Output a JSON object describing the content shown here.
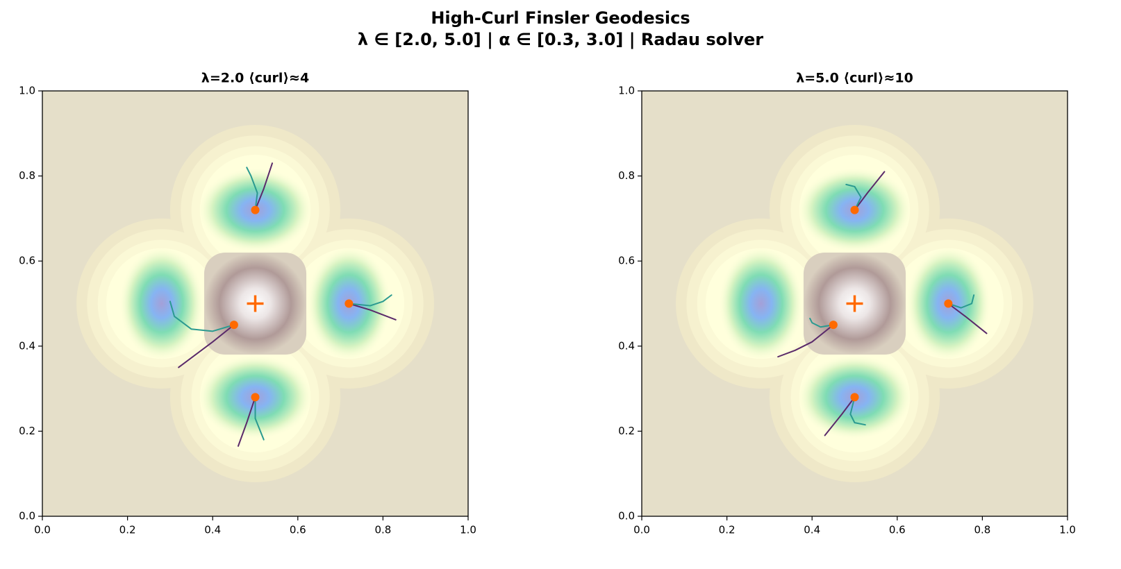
{
  "title": "High-Curl Finsler Geodesics",
  "subtitle": "λ ∈ [2.0, 5.0] | α ∈ [0.3, 3.0] | Radau solver",
  "chart_data": [
    {
      "type": "geodesic",
      "title": "λ=2.0  ⟨curl⟩≈4",
      "xlim": [
        0,
        1
      ],
      "ylim": [
        0,
        1
      ],
      "xticks": [
        {
          "value": 0,
          "label": "0.0"
        },
        {
          "value": 0.2,
          "label": "0.2"
        },
        {
          "value": 0.4,
          "label": "0.4"
        },
        {
          "value": 0.6,
          "label": "0.6"
        },
        {
          "value": 0.8,
          "label": "0.8"
        },
        {
          "value": 1,
          "label": "1.0"
        }
      ],
      "yticks": [
        {
          "value": 0,
          "label": "0.0"
        },
        {
          "value": 0.2,
          "label": "0.2"
        },
        {
          "value": 0.4,
          "label": "0.4"
        },
        {
          "value": 0.6,
          "label": "0.6"
        },
        {
          "value": 0.8,
          "label": "0.8"
        },
        {
          "value": 1,
          "label": "1.0"
        }
      ],
      "wells": {
        "x": [
          0.28,
          0.72,
          0.5,
          0.5
        ],
        "y": [
          0.5,
          0.5,
          0.72,
          0.28
        ]
      },
      "center": {
        "x": 0.5,
        "y": 0.5,
        "color": "#ff6a00"
      },
      "sources": {
        "x": [
          0.45,
          0.72,
          0.5,
          0.5
        ],
        "y": [
          0.45,
          0.5,
          0.72,
          0.28
        ],
        "color": "#ff6a00"
      },
      "series": [
        {
          "color": "#5a2a6a",
          "x": [
            0.45,
            0.4,
            0.36,
            0.32
          ],
          "y": [
            0.45,
            0.41,
            0.38,
            0.35
          ]
        },
        {
          "color": "#2a9a90",
          "x": [
            0.45,
            0.4,
            0.35,
            0.31,
            0.3
          ],
          "y": [
            0.45,
            0.435,
            0.44,
            0.47,
            0.505
          ]
        },
        {
          "color": "#5a2a6a",
          "x": [
            0.72,
            0.77,
            0.83
          ],
          "y": [
            0.5,
            0.485,
            0.462
          ]
        },
        {
          "color": "#2a9a90",
          "x": [
            0.72,
            0.77,
            0.8,
            0.82
          ],
          "y": [
            0.5,
            0.495,
            0.505,
            0.52
          ]
        },
        {
          "color": "#5a2a6a",
          "x": [
            0.5,
            0.52,
            0.54
          ],
          "y": [
            0.72,
            0.77,
            0.83
          ]
        },
        {
          "color": "#2a9a90",
          "x": [
            0.5,
            0.505,
            0.49,
            0.48
          ],
          "y": [
            0.72,
            0.76,
            0.8,
            0.82
          ]
        },
        {
          "color": "#5a2a6a",
          "x": [
            0.5,
            0.48,
            0.46
          ],
          "y": [
            0.28,
            0.22,
            0.165
          ]
        },
        {
          "color": "#2a9a90",
          "x": [
            0.5,
            0.5,
            0.52
          ],
          "y": [
            0.28,
            0.23,
            0.18
          ]
        }
      ]
    },
    {
      "type": "geodesic",
      "title": "λ=5.0  ⟨curl⟩≈10",
      "xlim": [
        0,
        1
      ],
      "ylim": [
        0,
        1
      ],
      "xticks": [
        {
          "value": 0,
          "label": "0.0"
        },
        {
          "value": 0.2,
          "label": "0.2"
        },
        {
          "value": 0.4,
          "label": "0.4"
        },
        {
          "value": 0.6,
          "label": "0.6"
        },
        {
          "value": 0.8,
          "label": "0.8"
        },
        {
          "value": 1,
          "label": "1.0"
        }
      ],
      "yticks": [
        {
          "value": 0,
          "label": "0.0"
        },
        {
          "value": 0.2,
          "label": "0.2"
        },
        {
          "value": 0.4,
          "label": "0.4"
        },
        {
          "value": 0.6,
          "label": "0.6"
        },
        {
          "value": 0.8,
          "label": "0.8"
        },
        {
          "value": 1,
          "label": "1.0"
        }
      ],
      "wells": {
        "x": [
          0.28,
          0.72,
          0.5,
          0.5
        ],
        "y": [
          0.5,
          0.5,
          0.72,
          0.28
        ]
      },
      "center": {
        "x": 0.5,
        "y": 0.5,
        "color": "#ff6a00"
      },
      "sources": {
        "x": [
          0.45,
          0.72,
          0.5,
          0.5
        ],
        "y": [
          0.45,
          0.5,
          0.72,
          0.28
        ],
        "color": "#ff6a00"
      },
      "series": [
        {
          "color": "#5a2a6a",
          "x": [
            0.45,
            0.4,
            0.36,
            0.32
          ],
          "y": [
            0.45,
            0.41,
            0.39,
            0.375
          ]
        },
        {
          "color": "#2a9a90",
          "x": [
            0.45,
            0.42,
            0.4,
            0.395
          ],
          "y": [
            0.45,
            0.445,
            0.455,
            0.465
          ]
        },
        {
          "color": "#5a2a6a",
          "x": [
            0.72,
            0.76,
            0.81
          ],
          "y": [
            0.5,
            0.47,
            0.43
          ]
        },
        {
          "color": "#2a9a90",
          "x": [
            0.72,
            0.75,
            0.775,
            0.78
          ],
          "y": [
            0.5,
            0.49,
            0.5,
            0.52
          ]
        },
        {
          "color": "#5a2a6a",
          "x": [
            0.5,
            0.53,
            0.57
          ],
          "y": [
            0.72,
            0.76,
            0.81
          ]
        },
        {
          "color": "#2a9a90",
          "x": [
            0.5,
            0.515,
            0.5,
            0.48
          ],
          "y": [
            0.72,
            0.75,
            0.775,
            0.78
          ]
        },
        {
          "color": "#5a2a6a",
          "x": [
            0.5,
            0.47,
            0.43
          ],
          "y": [
            0.28,
            0.24,
            0.19
          ]
        },
        {
          "color": "#2a9a90",
          "x": [
            0.5,
            0.49,
            0.5,
            0.525
          ],
          "y": [
            0.28,
            0.24,
            0.22,
            0.215
          ]
        }
      ]
    }
  ]
}
